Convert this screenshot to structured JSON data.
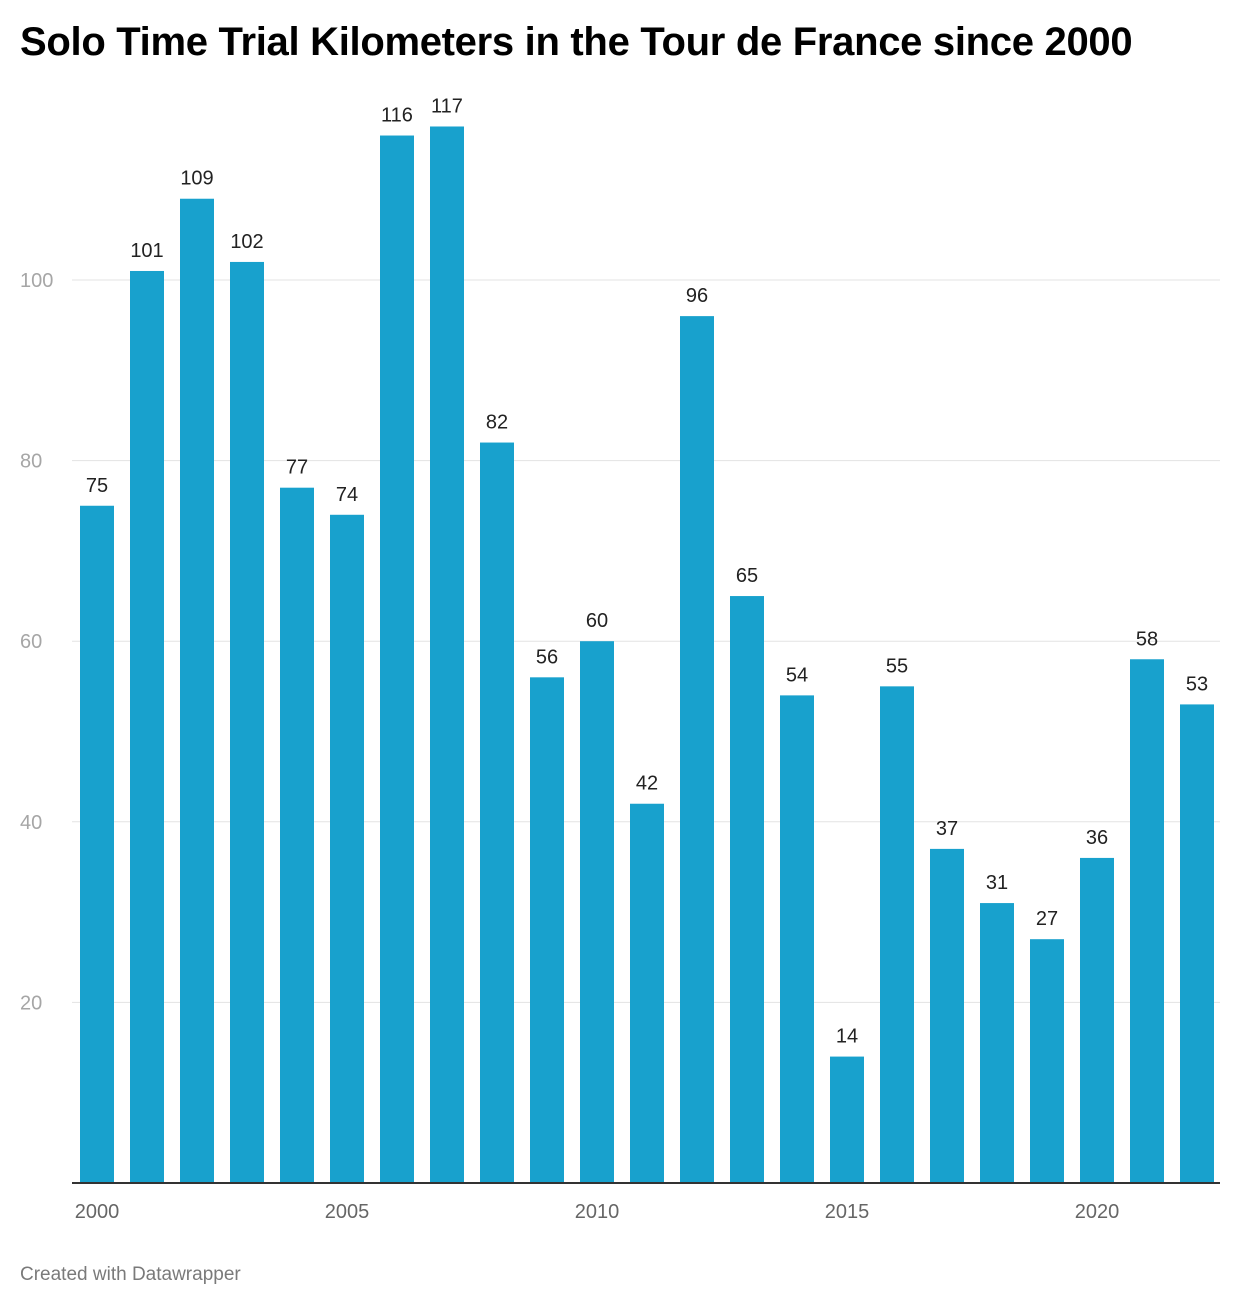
{
  "title": "Solo Time Trial Kilometers in the Tour de France since 2000",
  "footer": "Created with Datawrapper",
  "colors": {
    "bar": "#18a1cd",
    "grid": "#e3e3e3",
    "axis": "#333333",
    "tick_text": "#a6a6a6",
    "x_tick_text": "#666666",
    "label_text": "#222222"
  },
  "chart_data": {
    "type": "bar",
    "title": "Solo Time Trial Kilometers in the Tour de France since 2000",
    "xlabel": "",
    "ylabel": "",
    "grid": true,
    "ylim": [
      0,
      120
    ],
    "yticks": [
      20,
      40,
      60,
      80,
      100
    ],
    "xticks": [
      "2000",
      "2005",
      "2010",
      "2015",
      "2020"
    ],
    "categories": [
      "2000",
      "2001",
      "2002",
      "2003",
      "2004",
      "2005",
      "2006",
      "2007",
      "2008",
      "2009",
      "2010",
      "2011",
      "2012",
      "2013",
      "2014",
      "2015",
      "2016",
      "2017",
      "2018",
      "2019",
      "2020",
      "2021",
      "2022"
    ],
    "values": [
      75,
      101,
      109,
      102,
      77,
      74,
      116,
      117,
      82,
      56,
      60,
      42,
      96,
      65,
      54,
      14,
      55,
      37,
      31,
      27,
      36,
      58,
      53
    ]
  }
}
